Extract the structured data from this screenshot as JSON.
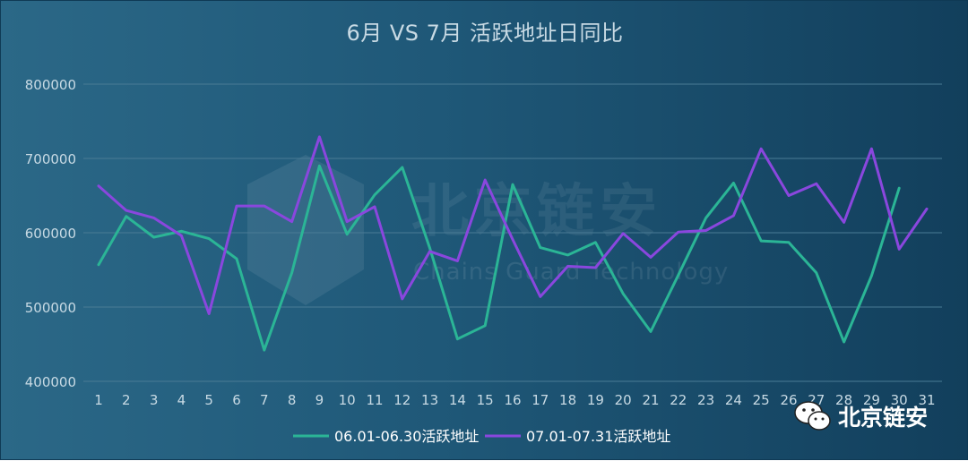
{
  "chart_data": {
    "type": "line",
    "title": "6月 VS 7月 活跃地址日同比",
    "x": [
      "1",
      "2",
      "3",
      "4",
      "5",
      "6",
      "7",
      "8",
      "9",
      "10",
      "11",
      "12",
      "13",
      "14",
      "15",
      "16",
      "17",
      "18",
      "19",
      "20",
      "21",
      "22",
      "23",
      "24",
      "25",
      "26",
      "27",
      "28",
      "29",
      "30",
      "31"
    ],
    "ylim": [
      400000,
      800000
    ],
    "yticks": [
      "400000",
      "500000",
      "600000",
      "700000",
      "800000"
    ],
    "grid": true,
    "legend_position": "bottom-center",
    "series": [
      {
        "name": "06.01-06.30活跃地址",
        "color": "#2bb596",
        "values": [
          557000,
          622000,
          594000,
          602000,
          592000,
          565000,
          442000,
          546000,
          690000,
          598000,
          651000,
          688000,
          579000,
          457000,
          475000,
          665000,
          580000,
          570000,
          587000,
          518000,
          467000,
          543000,
          620000,
          667000,
          589000,
          587000,
          546000,
          453000,
          542000,
          660000,
          null
        ]
      },
      {
        "name": "07.01-07.31活跃地址",
        "color": "#8a47de",
        "values": [
          663000,
          630000,
          620000,
          596000,
          491000,
          636000,
          636000,
          615000,
          729000,
          615000,
          635000,
          511000,
          575000,
          562000,
          671000,
          591000,
          514000,
          555000,
          553000,
          599000,
          567000,
          601000,
          603000,
          623000,
          713000,
          650000,
          666000,
          614000,
          713000,
          578000,
          632000
        ]
      }
    ]
  },
  "watermark": {
    "name": "北京链安",
    "sub": "Chains Guard Technology"
  },
  "badge": {
    "icon": "wechat-icon",
    "label": "北京链安"
  },
  "colors": {
    "grid": "#4a7b95",
    "axis_text": "#c8dae4",
    "legend_text": "#ffffff"
  }
}
